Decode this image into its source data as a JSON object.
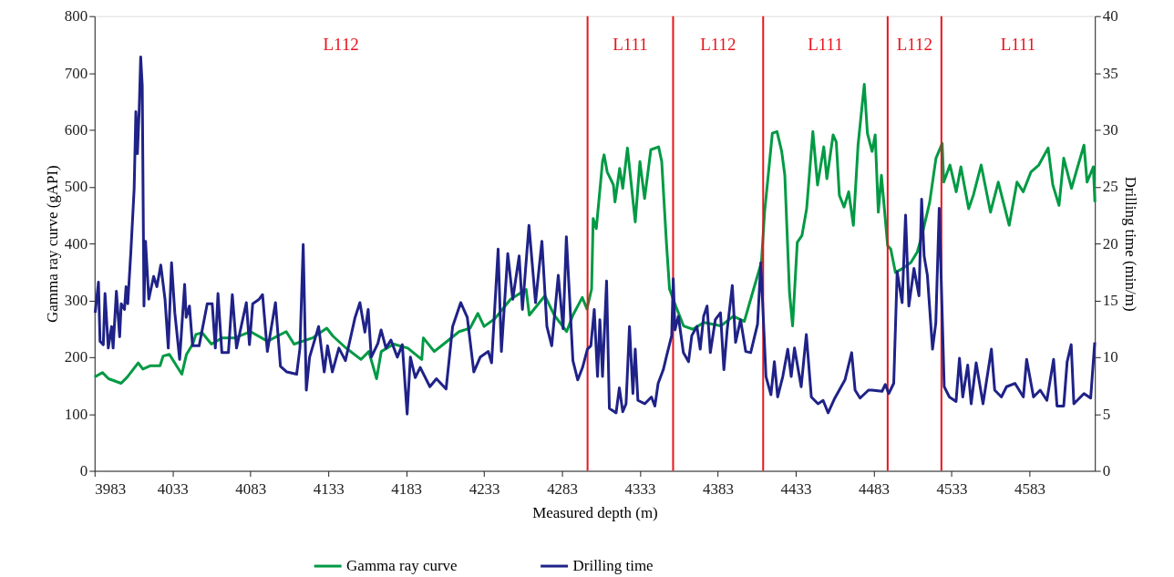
{
  "chart_data": {
    "type": "line",
    "xlabel": "Measured depth (m)",
    "ylabel": "Gamma ray  curve (gAPI)",
    "y2label": "Drilling time (min/m)",
    "xlim": [
      3983,
      4625
    ],
    "xticks": [
      3983,
      4033,
      4083,
      4133,
      4183,
      4233,
      4283,
      4333,
      4383,
      4433,
      4483,
      4533,
      4583
    ],
    "ylim": [
      0,
      800
    ],
    "yticks": [
      0,
      100,
      200,
      300,
      400,
      500,
      600,
      700,
      800
    ],
    "y2lim": [
      0,
      40
    ],
    "y2ticks": [
      0,
      5,
      10,
      15,
      20,
      25,
      30,
      35,
      40
    ],
    "legend": "bottom",
    "grid": false,
    "ref_lines": [
      {
        "axis": "x",
        "value": 4299.4,
        "label": null,
        "color": "#e8141c"
      },
      {
        "axis": "x",
        "value": 4354.3,
        "label": null,
        "color": "#e8141c"
      },
      {
        "axis": "x",
        "value": 4412.1,
        "label": null,
        "color": "#e8141c"
      },
      {
        "axis": "x",
        "value": 4492.0,
        "label": null,
        "color": "#e8141c"
      },
      {
        "axis": "x",
        "value": 4526.5,
        "label": null,
        "color": "#e8141c"
      }
    ],
    "annotations": [
      "L112",
      "L111",
      "L112",
      "L111",
      "L112",
      "L111"
    ],
    "series": [
      {
        "name": "Gamma ray  curve",
        "color": "#009a44",
        "x": [
          3983,
          3988,
          3992,
          4000,
          4004,
          4011,
          4014,
          4019,
          4025,
          4027,
          4031,
          4039,
          4042,
          4046,
          4048,
          4052,
          4058,
          4065,
          4073,
          4083,
          4094,
          4106,
          4111,
          4123,
          4132,
          4136,
          4144,
          4154,
          4159,
          4164,
          4167,
          4175,
          4184,
          4193,
          4194,
          4201,
          4207,
          4217,
          4224,
          4229,
          4233,
          4240,
          4250,
          4260,
          4262,
          4272,
          4278,
          4286,
          4290,
          4296,
          4299,
          4302,
          4303,
          4305,
          4309,
          4310,
          4312,
          4316,
          4317,
          4320,
          4322,
          4325,
          4330,
          4333,
          4336,
          4340,
          4345,
          4347,
          4350,
          4352,
          4356,
          4361,
          4367,
          4374,
          4385,
          4393,
          4400,
          4406,
          4411,
          4413,
          4416,
          4418,
          4421,
          4424,
          4426,
          4429,
          4431,
          4434,
          4437,
          4440,
          4444,
          4447,
          4451,
          4453,
          4457,
          4459,
          4461,
          4464,
          4467,
          4470,
          4473,
          4477,
          4479,
          4482,
          4484,
          4486,
          4488,
          4492,
          4494,
          4497,
          4501,
          4507,
          4511,
          4514,
          4519,
          4523,
          4527,
          4528,
          4532,
          4536,
          4539,
          4544,
          4547,
          4552,
          4558,
          4563,
          4570,
          4575,
          4579,
          4584,
          4589,
          4595,
          4598,
          4602,
          4605,
          4610,
          4613,
          4618,
          4620,
          4624,
          4625
        ],
        "values": [
          165,
          173,
          162,
          154,
          165,
          190,
          179,
          185,
          185,
          202,
          205,
          170,
          205,
          223,
          240,
          243,
          223,
          234,
          234,
          245,
          228,
          245,
          223,
          234,
          251,
          237,
          217,
          196,
          210,
          162,
          210,
          223,
          216,
          196,
          234,
          210,
          223,
          245,
          251,
          277,
          254,
          268,
          302,
          319,
          274,
          308,
          274,
          245,
          274,
          305,
          285,
          320,
          444,
          426,
          544,
          556,
          526,
          503,
          473,
          532,
          497,
          568,
          438,
          544,
          479,
          565,
          570,
          544,
          402,
          320,
          290,
          255,
          249,
          261,
          255,
          272,
          263,
          320,
          367,
          455,
          538,
          594,
          597,
          562,
          520,
          314,
          255,
          402,
          414,
          461,
          597,
          503,
          570,
          514,
          591,
          579,
          485,
          464,
          491,
          432,
          573,
          680,
          594,
          562,
          591,
          455,
          520,
          396,
          390,
          349,
          355,
          367,
          385,
          414,
          473,
          550,
          576,
          508,
          538,
          491,
          535,
          461,
          485,
          538,
          455,
          508,
          432,
          508,
          491,
          526,
          538,
          568,
          503,
          467,
          550,
          497,
          526,
          573,
          508,
          535,
          473
        ]
      },
      {
        "name": "Drilling time",
        "color": "#1f2287",
        "axis": "y2",
        "x": [
          3983.4,
          3985.5,
          3986.5,
          3988.6,
          3989.7,
          3991.8,
          3993.9,
          3994.9,
          3997,
          3999.1,
          4000.1,
          4002.2,
          4003.2,
          4004.3,
          4006.3,
          4008.4,
          4009.5,
          4010.5,
          4011.6,
          4012.6,
          4013.6,
          4014.7,
          4015.7,
          4017.8,
          4020.9,
          4023,
          4025.5,
          4028.2,
          4030.3,
          4032.4,
          4034.5,
          4037.6,
          4040.8,
          4041.8,
          4043.9,
          4045.9,
          4050.1,
          4055.3,
          4058.5,
          4060.5,
          4062.2,
          4064.7,
          4068.9,
          4071.4,
          4074.1,
          4080.4,
          4082.4,
          4084.5,
          4088.7,
          4090.8,
          4093.9,
          4099.1,
          4102.3,
          4106.4,
          4112.7,
          4114.8,
          4116.9,
          4118.9,
          4121,
          4126.8,
          4130.4,
          4132.5,
          4135.6,
          4139.8,
          4144,
          4150.2,
          4153.3,
          4156.5,
          4158.6,
          4160.6,
          4164.8,
          4166.9,
          4170,
          4173.2,
          4177.3,
          4180.5,
          4183.6,
          4185.7,
          4188.8,
          4192,
          4198.2,
          4202.4,
          4208.6,
          4212.8,
          4218,
          4222.2,
          4226.4,
          4230.5,
          4235.7,
          4237.8,
          4242,
          4244.1,
          4248.2,
          4251.4,
          4255.5,
          4257.6,
          4261.8,
          4266,
          4270.1,
          4273.3,
          4276.4,
          4280.6,
          4283.7,
          4285.8,
          4290,
          4293.1,
          4296.2,
          4299.3,
          4301.5,
          4303.7,
          4305.8,
          4307.3,
          4309,
          4311.6,
          4313.4,
          4317.7,
          4319.8,
          4322,
          4324.1,
          4326.3,
          4328.5,
          4330,
          4331.7,
          4336.1,
          4340.4,
          4342.6,
          4344.7,
          4348,
          4350.1,
          4353.4,
          4354.4,
          4355.5,
          4357.7,
          4360.9,
          4364.2,
          4366.3,
          4369.6,
          4371.7,
          4373.9,
          4376.1,
          4378.2,
          4381.4,
          4384.7,
          4386.9,
          4389,
          4392.3,
          4394.4,
          4397.6,
          4400.9,
          4404.1,
          4408.5,
          4410.6,
          4413.9,
          4417.1,
          4419.3,
          4421.4,
          4424.7,
          4427.9,
          4430.1,
          4432.2,
          4436.5,
          4439.8,
          4443,
          4447.3,
          4450.6,
          4453.8,
          4458.1,
          4464.6,
          4468.9,
          4471.1,
          4474.3,
          4479.7,
          4481.9,
          4488.4,
          4490.5,
          4492.7,
          4495.9,
          4498.1,
          4501.3,
          4503.5,
          4505.6,
          4508.9,
          4512.1,
          4513.8,
          4515.4,
          4517.5,
          4520.8,
          4522.9,
          4525.1,
          4528.3,
          4531.6,
          4535.9,
          4538.1,
          4540.2,
          4543.4,
          4545.6,
          4548.8,
          4553.2,
          4558.6,
          4560.7,
          4565,
          4568.3,
          4573.7,
          4579.1,
          4581.2,
          4585.6,
          4589.9,
          4594.2,
          4598.5,
          4600.7,
          4605,
          4607.2,
          4609.8,
          4611.5,
          4618,
          4622.3,
          4624.9
        ],
        "values": [
          13.9,
          16.6,
          11.4,
          11.1,
          15.6,
          10.8,
          12.7,
          10.8,
          15.8,
          11.8,
          14.7,
          14.2,
          16.2,
          14.7,
          19.3,
          24.8,
          31.6,
          27.9,
          31.6,
          36.4,
          33.9,
          14.5,
          20.2,
          15.1,
          17.1,
          16.2,
          18.1,
          15.1,
          10.8,
          18.3,
          13.9,
          9.8,
          16.4,
          13.5,
          14.5,
          11.0,
          11.0,
          14.7,
          14.7,
          10.8,
          15.6,
          10.4,
          10.4,
          15.5,
          10.8,
          14.8,
          11.1,
          14.7,
          15.1,
          15.5,
          10.5,
          14.8,
          9.2,
          8.7,
          8.5,
          10.8,
          19.9,
          7.1,
          10.0,
          12.7,
          8.7,
          11.0,
          8.7,
          10.8,
          9.7,
          13.5,
          14.8,
          12.2,
          14.2,
          10.0,
          11.2,
          12.4,
          10.8,
          11.5,
          10.0,
          11.1,
          5.0,
          10.0,
          8.2,
          9.1,
          7.4,
          8.1,
          7.2,
          12.7,
          14.8,
          13.5,
          8.7,
          10.0,
          10.5,
          9.5,
          19.5,
          10.5,
          19.1,
          15.1,
          18.9,
          14.2,
          21.6,
          14.8,
          20.2,
          12.7,
          11.0,
          17.2,
          12.5,
          20.6,
          9.7,
          8.0,
          9.1,
          10.7,
          11.0,
          14.2,
          8.3,
          13.3,
          8.3,
          16.7,
          5.5,
          5.1,
          7.3,
          5.2,
          5.9,
          12.7,
          6.8,
          10.7,
          6.2,
          5.9,
          6.5,
          5.7,
          7.7,
          8.9,
          10.1,
          11.9,
          16.9,
          12.4,
          13.6,
          10.4,
          9.6,
          11.9,
          12.7,
          10.7,
          13.6,
          14.5,
          10.4,
          13.3,
          13.9,
          8.9,
          12.4,
          16.3,
          11.3,
          13.3,
          10.5,
          10.4,
          12.9,
          18.3,
          8.3,
          6.7,
          9.6,
          6.5,
          8.3,
          10.7,
          8.3,
          10.8,
          7.4,
          12.0,
          6.5,
          5.9,
          6.2,
          5.1,
          6.4,
          8.0,
          10.4,
          7.1,
          6.4,
          7.1,
          7.1,
          7.0,
          7.6,
          6.8,
          7.7,
          17.5,
          14.8,
          22.5,
          14.5,
          17.8,
          15.4,
          23.9,
          18.9,
          17.2,
          10.7,
          13.0,
          23.1,
          7.4,
          6.5,
          6.1,
          9.9,
          6.5,
          9.3,
          5.9,
          9.5,
          5.9,
          10.7,
          7.1,
          6.5,
          7.4,
          7.7,
          6.5,
          9.8,
          6.5,
          7.1,
          6.2,
          9.8,
          5.7,
          5.7,
          9.6,
          11.1,
          5.9,
          6.8,
          6.4,
          11.3
        ]
      }
    ]
  }
}
